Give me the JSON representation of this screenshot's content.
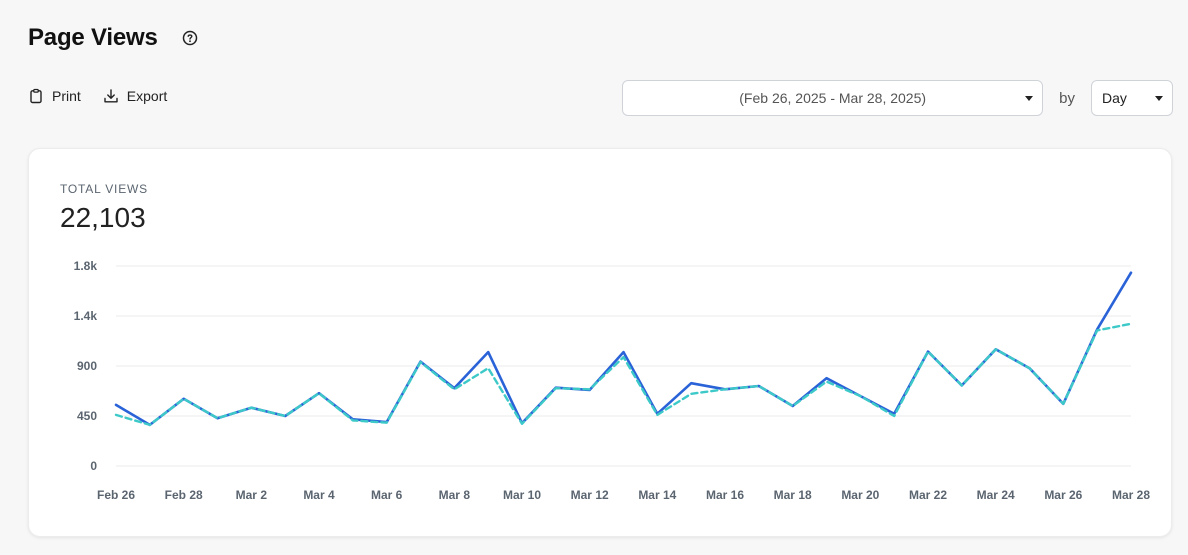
{
  "header": {
    "title": "Page Views",
    "help_icon": "help-circle-icon"
  },
  "actions": [
    {
      "label": "Print",
      "icon": "clipboard-icon"
    },
    {
      "label": "Export",
      "icon": "download-icon"
    }
  ],
  "controls": {
    "date_range": "(Feb 26, 2025 - Mar 28, 2025)",
    "by_label": "by",
    "granularity": "Day"
  },
  "metric": {
    "label": "TOTAL VIEWS",
    "value": "22,103"
  },
  "colors": {
    "series_primary": "#2a62d8",
    "series_secondary": "#3ec9c9",
    "grid": "#ebebeb"
  },
  "chart_data": {
    "type": "line",
    "x": [
      "Feb 26",
      "Feb 27",
      "Feb 28",
      "Mar 1",
      "Mar 2",
      "Mar 3",
      "Mar 4",
      "Mar 5",
      "Mar 6",
      "Mar 7",
      "Mar 8",
      "Mar 9",
      "Mar 10",
      "Mar 11",
      "Mar 12",
      "Mar 13",
      "Mar 14",
      "Mar 15",
      "Mar 16",
      "Mar 17",
      "Mar 18",
      "Mar 19",
      "Mar 20",
      "Mar 21",
      "Mar 22",
      "Mar 23",
      "Mar 24",
      "Mar 25",
      "Mar 26",
      "Mar 27",
      "Mar 28"
    ],
    "xtick_labels": [
      "Feb 26",
      "Feb 28",
      "Mar 2",
      "Mar 4",
      "Mar 6",
      "Mar 8",
      "Mar 10",
      "Mar 12",
      "Mar 14",
      "Mar 16",
      "Mar 18",
      "Mar 20",
      "Mar 22",
      "Mar 24",
      "Mar 26",
      "Mar 28"
    ],
    "ytick_labels": [
      "0",
      "450",
      "900",
      "1.4k",
      "1.8k"
    ],
    "yticks": [
      0,
      450,
      900,
      1350,
      1800
    ],
    "ylim": [
      0,
      1800
    ],
    "grid": true,
    "series": [
      {
        "values": [
          550,
          370,
          605,
          430,
          525,
          450,
          655,
          420,
          395,
          940,
          700,
          1025,
          385,
          705,
          685,
          1025,
          470,
          745,
          690,
          720,
          540,
          790,
          630,
          470,
          1030,
          725,
          1050,
          880,
          560,
          1230,
          1740
        ]
      },
      {
        "dashed": true,
        "values": [
          460,
          370,
          605,
          430,
          525,
          450,
          655,
          410,
          390,
          935,
          690,
          880,
          380,
          700,
          690,
          980,
          460,
          650,
          690,
          720,
          540,
          760,
          630,
          450,
          1030,
          725,
          1050,
          880,
          560,
          1220,
          1280
        ]
      }
    ]
  }
}
